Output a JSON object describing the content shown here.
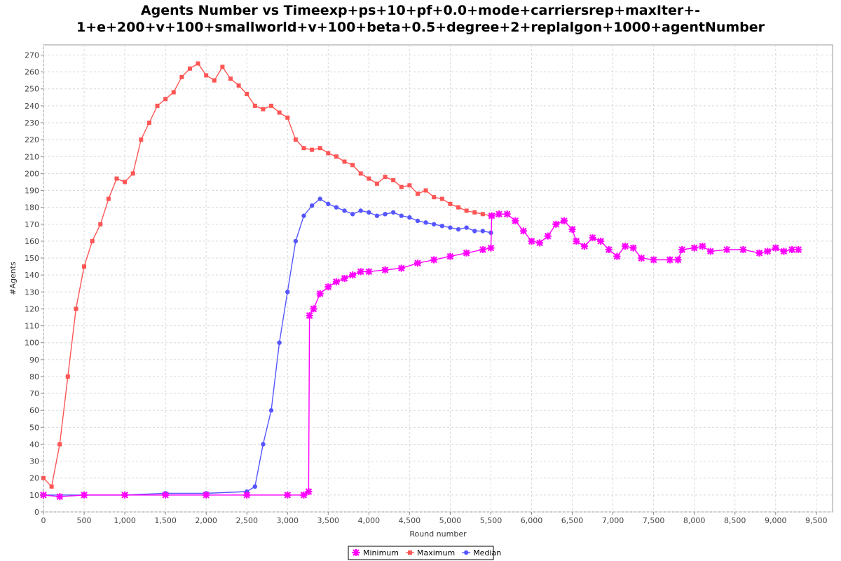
{
  "chart_data": {
    "type": "line",
    "title_line1": "Agents Number vs Timeexp+ps+10+pf+0.0+mode+carriersrep+maxIter+-",
    "title_line2": "1+e+200+v+100+smallworld+v+100+beta+0.5+degree+2+replalgon+1000+agentNumber",
    "xlabel": "Round number",
    "ylabel": "#Agents",
    "xlim": [
      0,
      9700
    ],
    "ylim": [
      0,
      276
    ],
    "x_ticks": [
      0,
      500,
      1000,
      1500,
      2000,
      2500,
      3000,
      3500,
      4000,
      4500,
      5000,
      5500,
      6000,
      6500,
      7000,
      7500,
      8000,
      8500,
      9000,
      9500
    ],
    "x_tick_labels": [
      "0",
      "500",
      "1,000",
      "1,500",
      "2,000",
      "2,500",
      "3,000",
      "3,500",
      "4,000",
      "4,500",
      "5,000",
      "5,500",
      "6,000",
      "6,500",
      "7,000",
      "7,500",
      "8,000",
      "8,500",
      "9,000",
      "9,500"
    ],
    "y_ticks": [
      0,
      10,
      20,
      30,
      40,
      50,
      60,
      70,
      80,
      90,
      100,
      110,
      120,
      130,
      140,
      150,
      160,
      170,
      180,
      190,
      200,
      210,
      220,
      230,
      240,
      250,
      260,
      270
    ],
    "grid": true,
    "legend_position": "bottom-center",
    "series": [
      {
        "name": "Minimum",
        "color": "#ff00ff",
        "marker": "star",
        "points": [
          [
            0,
            10
          ],
          [
            200,
            9
          ],
          [
            500,
            10
          ],
          [
            1000,
            10
          ],
          [
            1500,
            10
          ],
          [
            2000,
            10
          ],
          [
            2500,
            10
          ],
          [
            3000,
            10
          ],
          [
            3200,
            10
          ],
          [
            3260,
            12
          ],
          [
            3270,
            116
          ],
          [
            3320,
            120
          ],
          [
            3400,
            129
          ],
          [
            3500,
            133
          ],
          [
            3600,
            136
          ],
          [
            3700,
            138
          ],
          [
            3800,
            140
          ],
          [
            3900,
            142
          ],
          [
            4000,
            142
          ],
          [
            4200,
            143
          ],
          [
            4400,
            144
          ],
          [
            4600,
            147
          ],
          [
            4800,
            149
          ],
          [
            5000,
            151
          ],
          [
            5200,
            153
          ],
          [
            5400,
            155
          ],
          [
            5500,
            156
          ],
          [
            5510,
            175
          ],
          [
            5600,
            176
          ],
          [
            5700,
            176
          ],
          [
            5800,
            172
          ],
          [
            5900,
            166
          ],
          [
            6000,
            160
          ],
          [
            6100,
            159
          ],
          [
            6200,
            163
          ],
          [
            6300,
            170
          ],
          [
            6400,
            172
          ],
          [
            6500,
            167
          ],
          [
            6550,
            160
          ],
          [
            6650,
            157
          ],
          [
            6750,
            162
          ],
          [
            6850,
            160
          ],
          [
            6950,
            155
          ],
          [
            7050,
            151
          ],
          [
            7150,
            157
          ],
          [
            7250,
            156
          ],
          [
            7350,
            150
          ],
          [
            7500,
            149
          ],
          [
            7700,
            149
          ],
          [
            7800,
            149
          ],
          [
            7850,
            155
          ],
          [
            8000,
            156
          ],
          [
            8100,
            157
          ],
          [
            8200,
            154
          ],
          [
            8400,
            155
          ],
          [
            8600,
            155
          ],
          [
            8800,
            153
          ],
          [
            8900,
            154
          ],
          [
            9000,
            156
          ],
          [
            9100,
            154
          ],
          [
            9200,
            155
          ],
          [
            9280,
            155
          ]
        ]
      },
      {
        "name": "Maximum",
        "color": "#ff5555",
        "marker": "square",
        "points": [
          [
            0,
            20
          ],
          [
            100,
            15
          ],
          [
            200,
            40
          ],
          [
            300,
            80
          ],
          [
            400,
            120
          ],
          [
            500,
            145
          ],
          [
            600,
            160
          ],
          [
            700,
            170
          ],
          [
            800,
            185
          ],
          [
            900,
            197
          ],
          [
            1000,
            195
          ],
          [
            1100,
            200
          ],
          [
            1200,
            220
          ],
          [
            1300,
            230
          ],
          [
            1400,
            240
          ],
          [
            1500,
            244
          ],
          [
            1600,
            248
          ],
          [
            1700,
            257
          ],
          [
            1800,
            262
          ],
          [
            1900,
            265
          ],
          [
            2000,
            258
          ],
          [
            2100,
            255
          ],
          [
            2200,
            263
          ],
          [
            2300,
            256
          ],
          [
            2400,
            252
          ],
          [
            2500,
            247
          ],
          [
            2600,
            240
          ],
          [
            2700,
            238
          ],
          [
            2800,
            240
          ],
          [
            2900,
            236
          ],
          [
            3000,
            233
          ],
          [
            3100,
            220
          ],
          [
            3200,
            215
          ],
          [
            3300,
            214
          ],
          [
            3400,
            215
          ],
          [
            3500,
            212
          ],
          [
            3600,
            210
          ],
          [
            3700,
            207
          ],
          [
            3800,
            205
          ],
          [
            3900,
            200
          ],
          [
            4000,
            197
          ],
          [
            4100,
            194
          ],
          [
            4200,
            198
          ],
          [
            4300,
            196
          ],
          [
            4400,
            192
          ],
          [
            4500,
            193
          ],
          [
            4600,
            188
          ],
          [
            4700,
            190
          ],
          [
            4800,
            186
          ],
          [
            4900,
            185
          ],
          [
            5000,
            182
          ],
          [
            5100,
            180
          ],
          [
            5200,
            178
          ],
          [
            5300,
            177
          ],
          [
            5400,
            176
          ],
          [
            5500,
            175
          ]
        ]
      },
      {
        "name": "Median",
        "color": "#5555ff",
        "marker": "circle",
        "points": [
          [
            0,
            10
          ],
          [
            500,
            10
          ],
          [
            1000,
            10
          ],
          [
            1500,
            11
          ],
          [
            2000,
            11
          ],
          [
            2500,
            12
          ],
          [
            2600,
            15
          ],
          [
            2700,
            40
          ],
          [
            2800,
            60
          ],
          [
            2900,
            100
          ],
          [
            3000,
            130
          ],
          [
            3100,
            160
          ],
          [
            3200,
            175
          ],
          [
            3300,
            181
          ],
          [
            3400,
            185
          ],
          [
            3500,
            182
          ],
          [
            3600,
            180
          ],
          [
            3700,
            178
          ],
          [
            3800,
            176
          ],
          [
            3900,
            178
          ],
          [
            4000,
            177
          ],
          [
            4100,
            175
          ],
          [
            4200,
            176
          ],
          [
            4300,
            177
          ],
          [
            4400,
            175
          ],
          [
            4500,
            174
          ],
          [
            4600,
            172
          ],
          [
            4700,
            171
          ],
          [
            4800,
            170
          ],
          [
            4900,
            169
          ],
          [
            5000,
            168
          ],
          [
            5100,
            167
          ],
          [
            5200,
            168
          ],
          [
            5300,
            166
          ],
          [
            5400,
            166
          ],
          [
            5500,
            165
          ]
        ]
      }
    ]
  }
}
